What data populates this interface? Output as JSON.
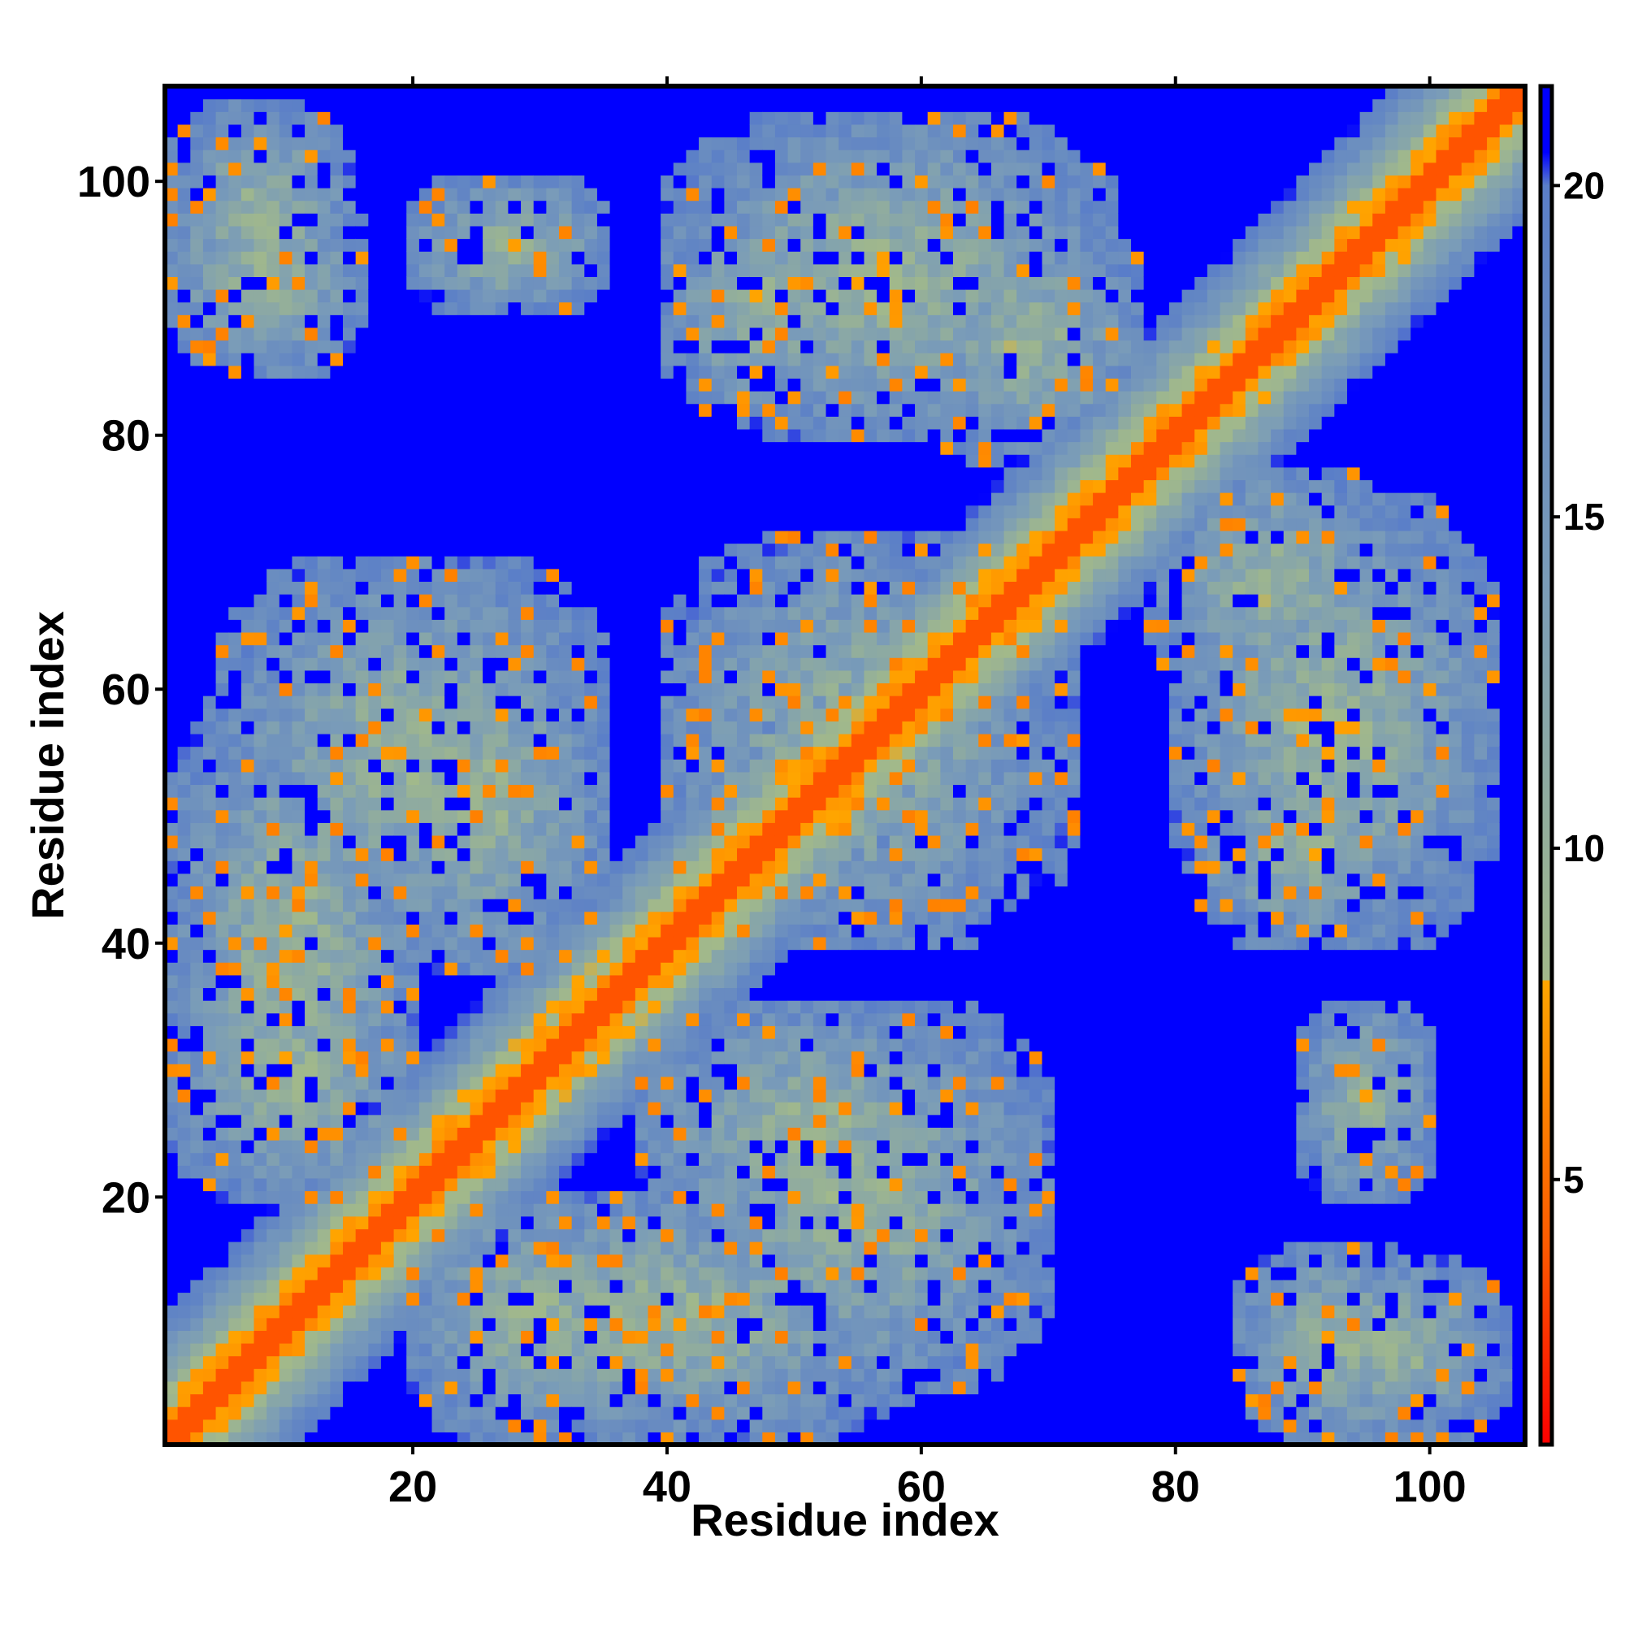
{
  "chart_data": {
    "type": "heatmap",
    "title": "",
    "xlabel": "Residue index",
    "ylabel": "Residue index",
    "n_residues": 107,
    "xlim": [
      1,
      107
    ],
    "ylim": [
      1,
      107
    ],
    "x_ticks": [
      20,
      40,
      60,
      80,
      100
    ],
    "y_ticks": [
      20,
      40,
      60,
      80,
      100
    ],
    "colorbar": {
      "ticks": [
        5,
        10,
        15,
        20
      ],
      "range": [
        1,
        21.5
      ],
      "cutoff": 8,
      "stops": [
        {
          "value": 1,
          "color": "#ff0000"
        },
        {
          "value": 4,
          "color": "#ff5a00"
        },
        {
          "value": 8,
          "color": "#ffa500"
        },
        {
          "value": 8.01,
          "color": "#a2b98a"
        },
        {
          "value": 14,
          "color": "#7a9cb8"
        },
        {
          "value": 20,
          "color": "#5a7ec8"
        },
        {
          "value": 20.5,
          "color": "#0000ff"
        }
      ],
      "above_cutoff_color": "#0000ff"
    },
    "description": "Symmetric residue-residue distance map (Å): diagonal band red/orange, domain contact blocks shown in grey-green/blue-grey, distant pairs saturated blue",
    "contact_regions": [
      {
        "x": [
          1,
          16
        ],
        "y": [
          85,
          100
        ],
        "max_distance": 19
      },
      {
        "x": [
          20,
          35
        ],
        "y": [
          90,
          100
        ],
        "max_distance": 21
      },
      {
        "x": [
          40,
          55
        ],
        "y": [
          82,
          98
        ],
        "max_distance": 19
      },
      {
        "x": [
          60,
          77
        ],
        "y": [
          78,
          97
        ],
        "max_distance": 19
      },
      {
        "x": [
          1,
          20
        ],
        "y": [
          20,
          60
        ],
        "max_distance": 19
      },
      {
        "x": [
          15,
          35
        ],
        "y": [
          38,
          65
        ],
        "max_distance": 19
      },
      {
        "x": [
          40,
          70
        ],
        "y": [
          40,
          72
        ],
        "max_distance": 20
      },
      {
        "x": [
          40,
          70
        ],
        "y": [
          5,
          35
        ],
        "max_distance": 19
      },
      {
        "x": [
          20,
          40
        ],
        "y": [
          1,
          20
        ],
        "max_distance": 19
      },
      {
        "x": [
          80,
          105
        ],
        "y": [
          40,
          75
        ],
        "max_distance": 19
      },
      {
        "x": [
          88,
          106
        ],
        "y": [
          1,
          15
        ],
        "max_distance": 19
      }
    ]
  }
}
